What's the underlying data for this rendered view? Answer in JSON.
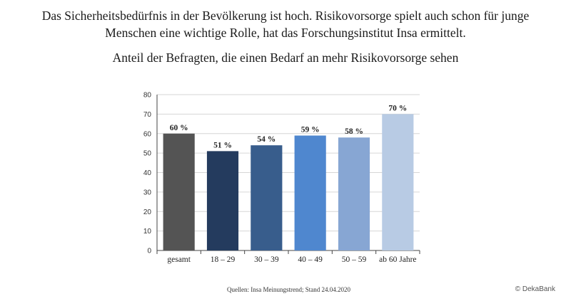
{
  "header": {
    "line1": "Das Sicherheitsbedürfnis in der Bevölkerung ist hoch. Risikovorsorge spielt auch schon für junge",
    "line2": "Menschen eine wichtige Rolle, hat das Forschungsinstitut Insa ermittelt."
  },
  "chart_data": {
    "type": "bar",
    "title": "Anteil der Befragten, die einen Bedarf an mehr Risikovorsorge sehen",
    "categories": [
      "gesamt",
      "18 – 29",
      "30 – 39",
      "40 – 49",
      "50 – 59",
      "ab 60 Jahre"
    ],
    "values": [
      60,
      51,
      54,
      59,
      58,
      70
    ],
    "value_labels": [
      "60 %",
      "51 %",
      "54 %",
      "59 %",
      "58 %",
      "70 %"
    ],
    "bar_colors": [
      "#545454",
      "#243b5e",
      "#385d8c",
      "#4f87cf",
      "#87a6d3",
      "#b8cbe4"
    ],
    "ylim": [
      0,
      80
    ],
    "yticks": [
      "0",
      "10",
      "20",
      "30",
      "40",
      "50",
      "60",
      "70",
      "80"
    ],
    "grid": true,
    "xlabel": "",
    "ylabel": ""
  },
  "footer": {
    "source": "Quellen: Insa Meinungstrend; Stand 24.04.2020",
    "copyright": "© DekaBank"
  }
}
